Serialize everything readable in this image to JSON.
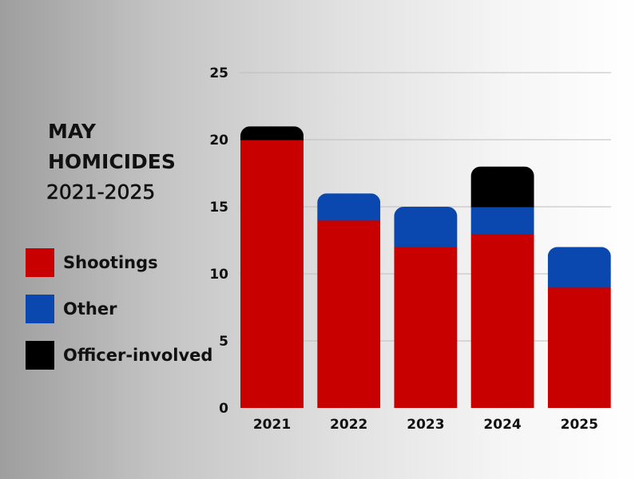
{
  "chart_data": {
    "type": "bar",
    "stacked": true,
    "title_lines": [
      "MAY",
      "HOMICIDES",
      "2021-2025"
    ],
    "categories": [
      "2021",
      "2022",
      "2023",
      "2024",
      "2025"
    ],
    "series": [
      {
        "name": "Shootings",
        "color": "#c80000",
        "values": [
          20,
          14,
          12,
          13,
          9
        ]
      },
      {
        "name": "Other",
        "color": "#0a48b0",
        "values": [
          0,
          2,
          3,
          2,
          3
        ]
      },
      {
        "name": "Officer-involved",
        "color": "#000000",
        "values": [
          1,
          0,
          0,
          3,
          0
        ]
      }
    ],
    "ylim": [
      0,
      25
    ],
    "yticks": [
      "0",
      "5",
      "10",
      "15",
      "20",
      "25"
    ],
    "grid": true,
    "legend_position": "left"
  }
}
